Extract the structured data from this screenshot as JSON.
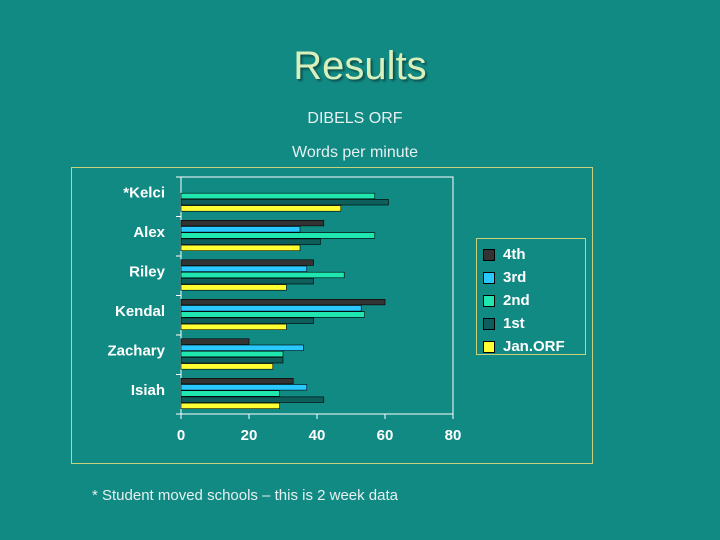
{
  "slide": {
    "title": "Results",
    "footnote": "* Student moved schools – this is 2 week data"
  },
  "chart_data": {
    "type": "bar",
    "orientation": "horizontal",
    "title": "DIBELS ORF",
    "subtitle": "Words per minute",
    "categories": [
      "*Kelci",
      "Alex",
      "Riley",
      "Kendal",
      "Zachary",
      "Isiah"
    ],
    "series": [
      {
        "name": "4th",
        "color": "#333333",
        "values": [
          null,
          42,
          39,
          60,
          20,
          33
        ]
      },
      {
        "name": "3rd",
        "color": "#29c8ff",
        "values": [
          null,
          35,
          37,
          53,
          36,
          37
        ]
      },
      {
        "name": "2nd",
        "color": "#20e6b0",
        "values": [
          57,
          57,
          48,
          54,
          30,
          29
        ]
      },
      {
        "name": "1st",
        "color": "#0e5f5c",
        "values": [
          61,
          41,
          39,
          39,
          30,
          42
        ]
      },
      {
        "name": "Jan.ORF",
        "color": "#ffff33",
        "values": [
          47,
          35,
          31,
          31,
          27,
          29
        ]
      }
    ],
    "xlim": [
      0,
      80
    ],
    "x_ticks": [
      "0",
      "20",
      "40",
      "60",
      "80"
    ],
    "grid": false,
    "legend_position": "right"
  }
}
